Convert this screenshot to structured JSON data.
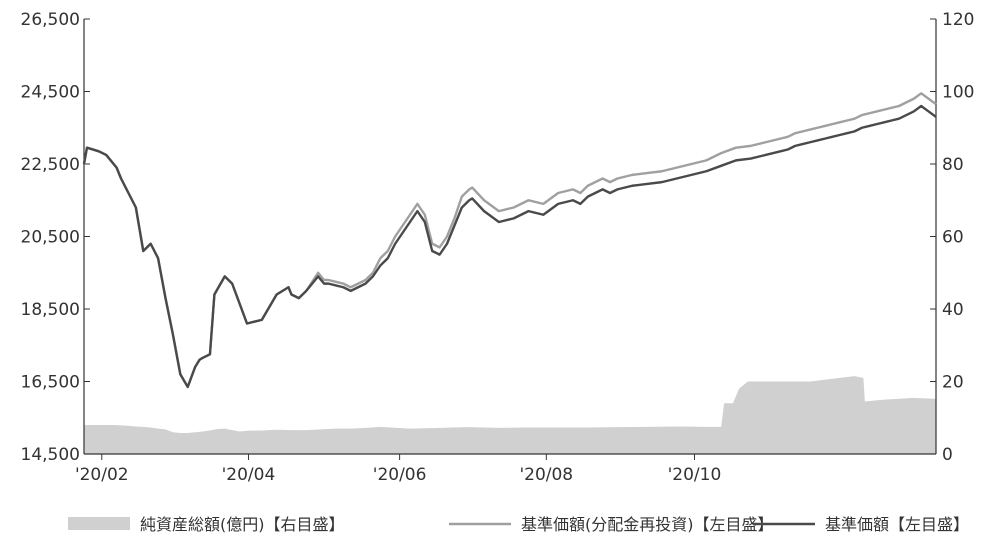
{
  "chart_data": {
    "type": "line",
    "title": "",
    "x_ticks": [
      "'20/02",
      "'20/04",
      "'20/06",
      "'20/08",
      "'20/10"
    ],
    "left_axis": {
      "min": 14500,
      "max": 26500,
      "ticks": [
        "14,500",
        "16,500",
        "18,500",
        "20,500",
        "22,500",
        "24,500",
        "26,500"
      ]
    },
    "right_axis": {
      "min": 0,
      "max": 120,
      "ticks": [
        "0",
        "20",
        "40",
        "60",
        "80",
        "100",
        "120"
      ]
    },
    "legend_placement": "bottom",
    "series": [
      {
        "name": "純資産総額(億円)【右目盛】",
        "type": "area",
        "axis": "right",
        "color": "#d0d0d0",
        "x": [
          0,
          0.05,
          0.1,
          0.15,
          0.2,
          0.25,
          0.3,
          0.35,
          0.4,
          0.45,
          0.5,
          0.55,
          0.6,
          0.65,
          0.7,
          0.75,
          0.8,
          0.85,
          0.9,
          0.95,
          1.0,
          1.05,
          1.1,
          1.2,
          1.3,
          1.4,
          1.5,
          1.6,
          1.7,
          1.8,
          1.9,
          2.0,
          2.2,
          2.4,
          2.6,
          2.8,
          3.0,
          3.2,
          3.4,
          3.6,
          3.8,
          4.0,
          4.2,
          4.3,
          4.32,
          4.38,
          4.42,
          4.48,
          4.6,
          4.7,
          4.8,
          4.9,
          5.0,
          5.1,
          5.2,
          5.26,
          5.27,
          5.4,
          5.6,
          5.75
        ],
        "values": [
          8,
          8,
          8,
          8,
          8,
          7.9,
          7.8,
          7.6,
          7.5,
          7.3,
          7,
          6.8,
          6,
          5.8,
          5.8,
          6,
          6.2,
          6.5,
          6.9,
          7,
          6.6,
          6.2,
          6.4,
          6.5,
          6.7,
          6.6,
          6.6,
          6.8,
          7,
          7,
          7.2,
          7.5,
          7,
          7.2,
          7.4,
          7.2,
          7.3,
          7.3,
          7.3,
          7.4,
          7.5,
          7.6,
          7.5,
          7.5,
          14,
          14,
          18,
          20,
          20,
          20,
          20,
          20,
          20.5,
          21,
          21.5,
          21,
          14.5,
          15,
          15.5,
          15.2
        ]
      },
      {
        "name": "基準価額(分配金再投資)【左目盛】",
        "type": "line",
        "axis": "left",
        "color": "#a0a0a0",
        "x": [
          0,
          0.02,
          0.1,
          0.15,
          0.22,
          0.25,
          0.3,
          0.35,
          0.4,
          0.45,
          0.5,
          0.55,
          0.6,
          0.65,
          0.7,
          0.75,
          0.78,
          0.8,
          0.85,
          0.88,
          0.95,
          1.0,
          1.1,
          1.2,
          1.3,
          1.38,
          1.4,
          1.45,
          1.5,
          1.58,
          1.62,
          1.65,
          1.7,
          1.75,
          1.8,
          1.85,
          1.9,
          1.95,
          2.0,
          2.05,
          2.1,
          2.15,
          2.2,
          2.25,
          2.3,
          2.35,
          2.4,
          2.45,
          2.5,
          2.55,
          2.6,
          2.62,
          2.7,
          2.8,
          2.9,
          3.0,
          3.1,
          3.2,
          3.3,
          3.35,
          3.4,
          3.45,
          3.5,
          3.55,
          3.6,
          3.7,
          3.8,
          3.9,
          4.0,
          4.1,
          4.2,
          4.3,
          4.4,
          4.5,
          4.6,
          4.7,
          4.75,
          4.8,
          4.85,
          4.9,
          4.95,
          5.0,
          5.05,
          5.1,
          5.15,
          5.2,
          5.25,
          5.3,
          5.35,
          5.4,
          5.45,
          5.5,
          5.55,
          5.6,
          5.65,
          5.7,
          5.75
        ],
        "values": [
          22500,
          22950,
          22850,
          22750,
          22400,
          22100,
          21700,
          21300,
          20100,
          20300,
          19900,
          18800,
          17800,
          16700,
          16350,
          16900,
          17100,
          17150,
          17250,
          18900,
          19400,
          19200,
          18100,
          18200,
          18900,
          19100,
          18900,
          18800,
          19000,
          19500,
          19300,
          19300,
          19250,
          19200,
          19100,
          19200,
          19300,
          19500,
          19900,
          20100,
          20500,
          20800,
          21100,
          21400,
          21100,
          20300,
          20200,
          20500,
          21000,
          21600,
          21800,
          21850,
          21500,
          21200,
          21300,
          21500,
          21400,
          21700,
          21800,
          21700,
          21900,
          22000,
          22100,
          22000,
          22100,
          22200,
          22250,
          22300,
          22400,
          22500,
          22600,
          22800,
          22950,
          23000,
          23100,
          23200,
          23250,
          23350,
          23400,
          23450,
          23500,
          23550,
          23600,
          23650,
          23700,
          23750,
          23850,
          23900,
          23950,
          24000,
          24050,
          24100,
          24200,
          24300,
          24450,
          24300,
          24150
        ],
        "note_offset": "lighter line runs above the darker line from mid-2020 onward"
      },
      {
        "name": "基準価額【左目盛】",
        "type": "line",
        "axis": "left",
        "color": "#4a4a4a",
        "x": [
          0,
          0.02,
          0.1,
          0.15,
          0.22,
          0.25,
          0.3,
          0.35,
          0.4,
          0.45,
          0.5,
          0.55,
          0.6,
          0.65,
          0.7,
          0.75,
          0.78,
          0.8,
          0.85,
          0.88,
          0.95,
          1.0,
          1.1,
          1.2,
          1.3,
          1.38,
          1.4,
          1.45,
          1.5,
          1.58,
          1.62,
          1.65,
          1.7,
          1.75,
          1.8,
          1.85,
          1.9,
          1.95,
          2.0,
          2.05,
          2.1,
          2.15,
          2.2,
          2.25,
          2.3,
          2.35,
          2.4,
          2.45,
          2.5,
          2.55,
          2.6,
          2.62,
          2.7,
          2.8,
          2.9,
          3.0,
          3.1,
          3.2,
          3.3,
          3.35,
          3.4,
          3.45,
          3.5,
          3.55,
          3.6,
          3.7,
          3.8,
          3.9,
          4.0,
          4.1,
          4.2,
          4.3,
          4.4,
          4.5,
          4.6,
          4.7,
          4.75,
          4.8,
          4.85,
          4.9,
          4.95,
          5.0,
          5.05,
          5.1,
          5.15,
          5.2,
          5.25,
          5.3,
          5.35,
          5.4,
          5.45,
          5.5,
          5.55,
          5.6,
          5.65,
          5.7,
          5.75
        ],
        "values": [
          22500,
          22950,
          22850,
          22750,
          22400,
          22100,
          21700,
          21300,
          20100,
          20300,
          19900,
          18800,
          17800,
          16700,
          16350,
          16900,
          17100,
          17150,
          17250,
          18900,
          19400,
          19200,
          18100,
          18200,
          18900,
          19100,
          18900,
          18800,
          19000,
          19400,
          19200,
          19200,
          19150,
          19100,
          19000,
          19100,
          19200,
          19400,
          19700,
          19900,
          20300,
          20600,
          20900,
          21200,
          20900,
          20100,
          20000,
          20300,
          20800,
          21300,
          21500,
          21550,
          21200,
          20900,
          21000,
          21200,
          21100,
          21400,
          21500,
          21400,
          21600,
          21700,
          21800,
          21700,
          21800,
          21900,
          21950,
          22000,
          22100,
          22200,
          22300,
          22450,
          22600,
          22650,
          22750,
          22850,
          22900,
          23000,
          23050,
          23100,
          23150,
          23200,
          23250,
          23300,
          23350,
          23400,
          23500,
          23550,
          23600,
          23650,
          23700,
          23750,
          23850,
          23950,
          24100,
          23950,
          23800
        ]
      }
    ]
  }
}
